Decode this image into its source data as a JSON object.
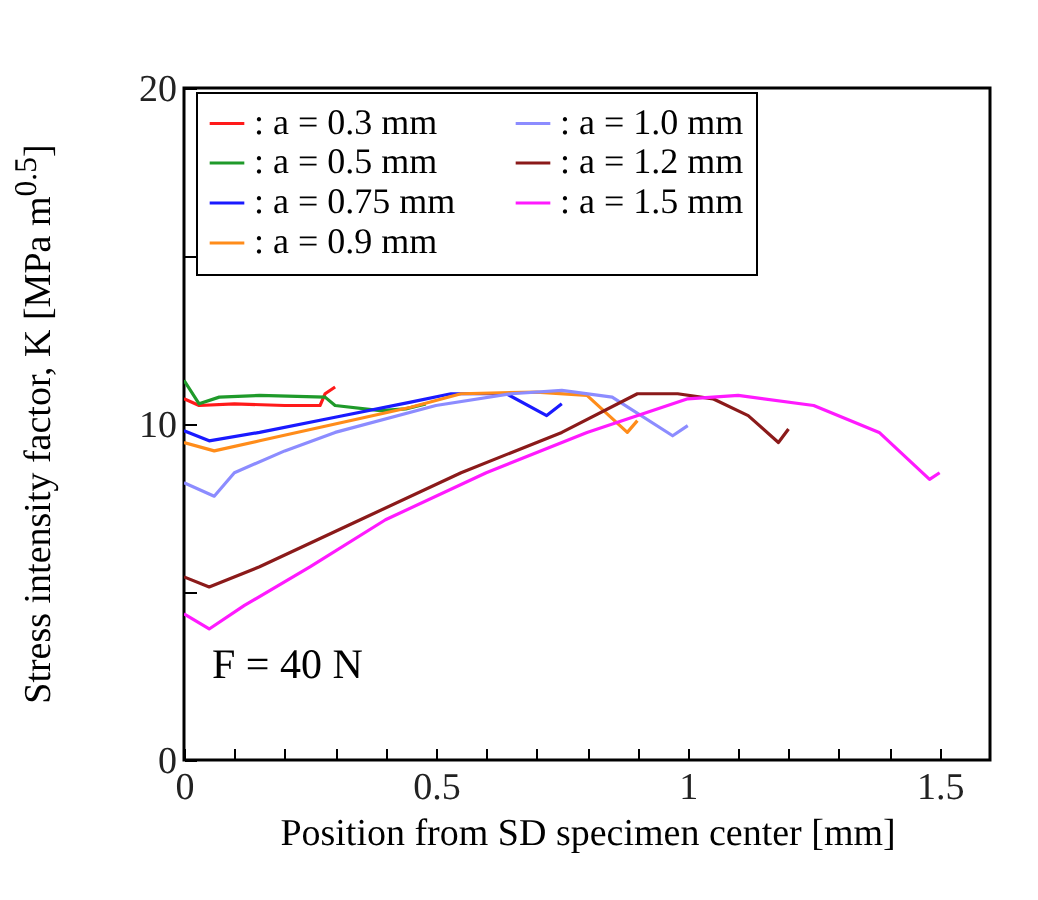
{
  "chart_data": {
    "type": "line",
    "xlabel": "Position from SD specimen center [mm]",
    "ylabel": "Stress intensity factor, K [MPa m$^{0.5}$]",
    "xlim": [
      0,
      1.6
    ],
    "ylim": [
      0,
      20
    ],
    "xticks": [
      0,
      {
        "value": 0.1,
        "label": null
      },
      {
        "value": 0.2,
        "label": null
      },
      {
        "value": 0.3,
        "label": null
      },
      {
        "value": 0.4,
        "label": null
      },
      0.5,
      {
        "value": 0.6,
        "label": null
      },
      {
        "value": 0.7,
        "label": null
      },
      {
        "value": 0.8,
        "label": null
      },
      {
        "value": 0.9,
        "label": null
      },
      1,
      {
        "value": 1.1,
        "label": null
      },
      {
        "value": 1.2,
        "label": null
      },
      {
        "value": 1.3,
        "label": null
      },
      {
        "value": 1.4,
        "label": null
      },
      1.5
    ],
    "yticks": [
      0,
      {
        "value": 5,
        "label": null
      },
      10,
      {
        "value": 15,
        "label": null
      },
      20
    ],
    "grid": false,
    "legend": "top",
    "marker": "none",
    "line_style": "solid",
    "annotations": [
      "F = 40 N"
    ],
    "series": [
      {
        "name": ": a = 0.3 mm",
        "color": "#ff1a1a",
        "x": [
          0,
          0.03,
          0.1,
          0.2,
          0.27,
          0.28,
          0.3
        ],
        "values": [
          10.75,
          10.55,
          10.6,
          10.55,
          10.55,
          10.9,
          11.1
        ]
      },
      {
        "name": ": a = 0.5 mm",
        "color": "#1f9a2a",
        "x": [
          0,
          0.03,
          0.07,
          0.15,
          0.28,
          0.3,
          0.39,
          0.44,
          0.48
        ],
        "values": [
          11.3,
          10.6,
          10.8,
          10.85,
          10.8,
          10.55,
          10.4,
          10.45,
          10.6
        ]
      },
      {
        "name": ": a = 0.75 mm",
        "color": "#1a1aff",
        "x": [
          0,
          0.05,
          0.15,
          0.3,
          0.45,
          0.53,
          0.64,
          0.72,
          0.75
        ],
        "values": [
          9.8,
          9.5,
          9.75,
          10.2,
          10.65,
          10.9,
          10.9,
          10.25,
          10.6
        ]
      },
      {
        "name": ": a = 0.9 mm",
        "color": "#ff8c1a",
        "x": [
          0,
          0.06,
          0.15,
          0.3,
          0.45,
          0.55,
          0.7,
          0.8,
          0.88,
          0.9
        ],
        "values": [
          9.45,
          9.2,
          9.5,
          10.0,
          10.5,
          10.9,
          10.95,
          10.85,
          9.75,
          10.1
        ]
      },
      {
        "name": ": a = 1.0 mm",
        "color": "#8c8cff",
        "x": [
          0,
          0.06,
          0.1,
          0.2,
          0.3,
          0.5,
          0.65,
          0.75,
          0.85,
          0.97,
          1.0
        ],
        "values": [
          8.25,
          7.85,
          8.55,
          9.2,
          9.75,
          10.55,
          10.9,
          11.0,
          10.8,
          9.65,
          9.95
        ]
      },
      {
        "name": ": a = 1.2 mm",
        "color": "#8b1a1a",
        "x": [
          0,
          0.05,
          0.15,
          0.35,
          0.55,
          0.75,
          0.9,
          0.98,
          1.05,
          1.12,
          1.18,
          1.2
        ],
        "values": [
          5.45,
          5.15,
          5.75,
          7.15,
          8.55,
          9.75,
          10.9,
          10.9,
          10.75,
          10.25,
          9.45,
          9.85
        ]
      },
      {
        "name": ": a = 1.5 mm",
        "color": "#ff1aff",
        "x": [
          0,
          0.05,
          0.12,
          0.25,
          0.4,
          0.6,
          0.8,
          1.0,
          1.1,
          1.25,
          1.38,
          1.48,
          1.5
        ],
        "values": [
          4.35,
          3.9,
          4.6,
          5.75,
          7.15,
          8.55,
          9.75,
          10.75,
          10.85,
          10.55,
          9.75,
          8.35,
          8.55
        ]
      }
    ]
  }
}
